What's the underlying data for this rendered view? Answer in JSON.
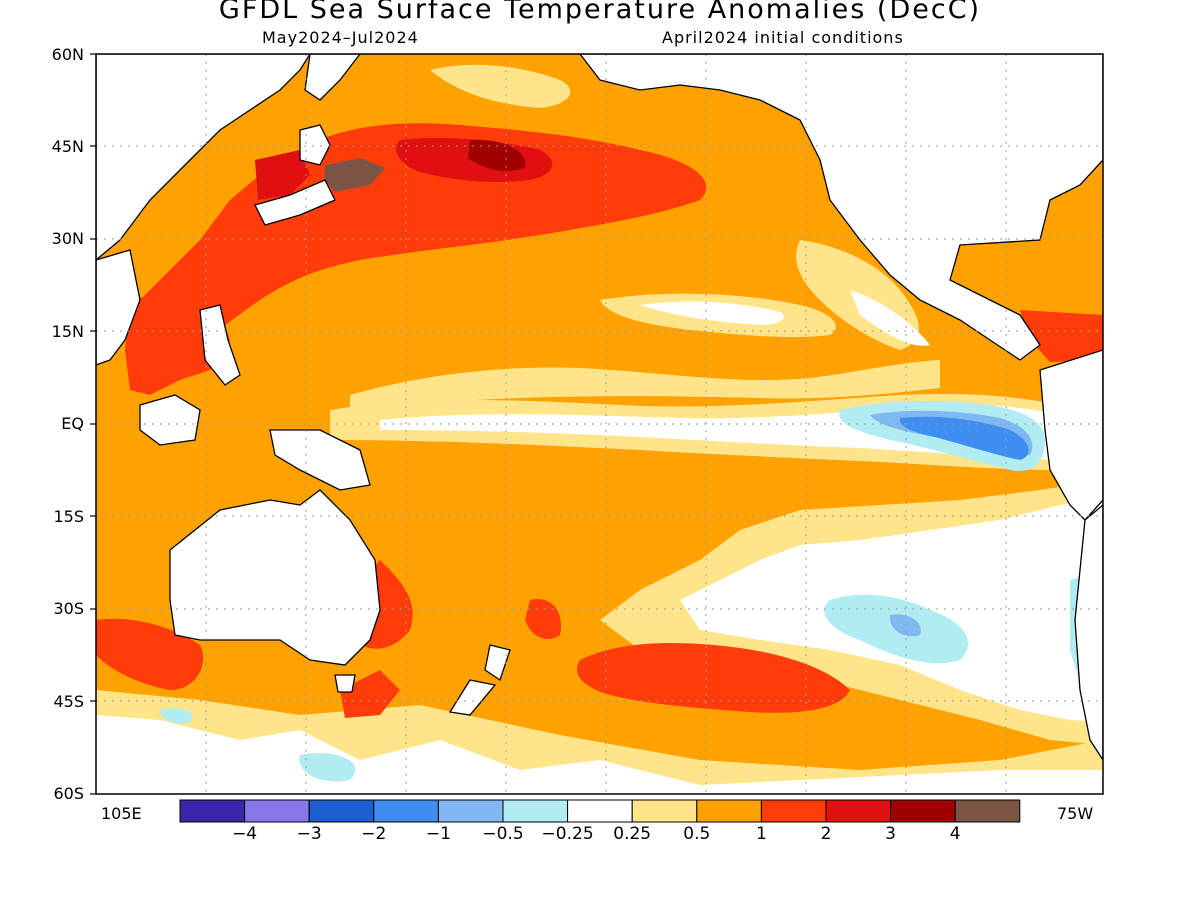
{
  "title": "GFDL Sea Surface Temperature Anomalies (DecC)",
  "subtitle_left": "May2024–Jul2024",
  "subtitle_right": "April2024 initial conditions",
  "lat_labels": [
    "60N",
    "45N",
    "30N",
    "15N",
    "EQ",
    "15S",
    "30S",
    "45S",
    "60S"
  ],
  "lon_labels": {
    "west": "105E",
    "east": "75W"
  },
  "colorbar": {
    "colors": [
      "#3a26a8",
      "#8877e8",
      "#1e5fcf",
      "#3f8df0",
      "#80b8f2",
      "#b0ecf2",
      "#ffffff",
      "#ffe48a",
      "#ffa200",
      "#ff3c0a",
      "#e01010",
      "#a00000",
      "#7a5444"
    ],
    "labels": [
      "−4",
      "−3",
      "−2",
      "−1",
      "−0.5",
      "−0.25",
      "0.25",
      "0.5",
      "1",
      "2",
      "3",
      "4"
    ]
  }
}
